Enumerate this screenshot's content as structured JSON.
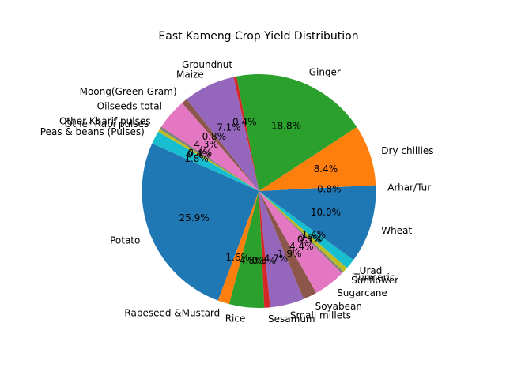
{
  "chart_data": {
    "type": "pie",
    "title": "East Kameng Crop Yield Distribution",
    "start_angle_deg": 0,
    "direction": "counterclockwise",
    "slices": [
      {
        "label": "Arhar/Tur",
        "pct_text": "0.8%",
        "value": 0.8,
        "color": "#1f77b4"
      },
      {
        "label": "Dry chillies",
        "pct_text": "8.4%",
        "value": 8.4,
        "color": "#ff7f0e"
      },
      {
        "label": "Ginger",
        "pct_text": "18.8%",
        "value": 18.8,
        "color": "#2ca02c"
      },
      {
        "label": "Groundnut",
        "pct_text": "0.4%",
        "value": 0.4,
        "color": "#d62728"
      },
      {
        "label": "Maize",
        "pct_text": "7.1%",
        "value": 7.1,
        "color": "#9467bd"
      },
      {
        "label": "Moong(Green Gram)",
        "pct_text": "0.8%",
        "value": 0.8,
        "color": "#8c564b"
      },
      {
        "label": "Oilseeds total",
        "pct_text": "4.3%",
        "value": 4.3,
        "color": "#e377c2"
      },
      {
        "label": "Other Kharif pulses",
        "pct_text": "0.4%",
        "value": 0.4,
        "color": "#7f7f7f"
      },
      {
        "label": "Other Rabi pulses",
        "pct_text": "0.4%",
        "value": 0.4,
        "color": "#bcbd22"
      },
      {
        "label": "Peas & beans (Pulses)",
        "pct_text": "1.8%",
        "value": 1.8,
        "color": "#17becf"
      },
      {
        "label": "Potato",
        "pct_text": "25.9%",
        "value": 25.9,
        "color": "#1f77b4"
      },
      {
        "label": "Rapeseed &Mustard",
        "pct_text": "1.6%",
        "value": 1.6,
        "color": "#ff7f0e"
      },
      {
        "label": "Rice",
        "pct_text": "4.8%",
        "value": 4.8,
        "color": "#2ca02c"
      },
      {
        "label": "Sesamum",
        "pct_text": "0.8%",
        "value": 0.8,
        "color": "#d62728"
      },
      {
        "label": "Small millets",
        "pct_text": "4.7%",
        "value": 4.7,
        "color": "#9467bd"
      },
      {
        "label": "Soyabean",
        "pct_text": "1.9%",
        "value": 1.9,
        "color": "#8c564b"
      },
      {
        "label": "Sugarcane",
        "pct_text": "4.4%",
        "value": 4.4,
        "color": "#e377c2"
      },
      {
        "label": "Sunflower",
        "pct_text": "0.3%",
        "value": 0.3,
        "color": "#7f7f7f"
      },
      {
        "label": "Turmeric",
        "pct_text": "0.7%",
        "value": 0.7,
        "color": "#bcbd22"
      },
      {
        "label": "Urad",
        "pct_text": "1.4%",
        "value": 1.4,
        "color": "#17becf"
      },
      {
        "label": "Wheat",
        "pct_text": "10.0%",
        "value": 10.0,
        "color": "#1f77b4"
      }
    ]
  }
}
